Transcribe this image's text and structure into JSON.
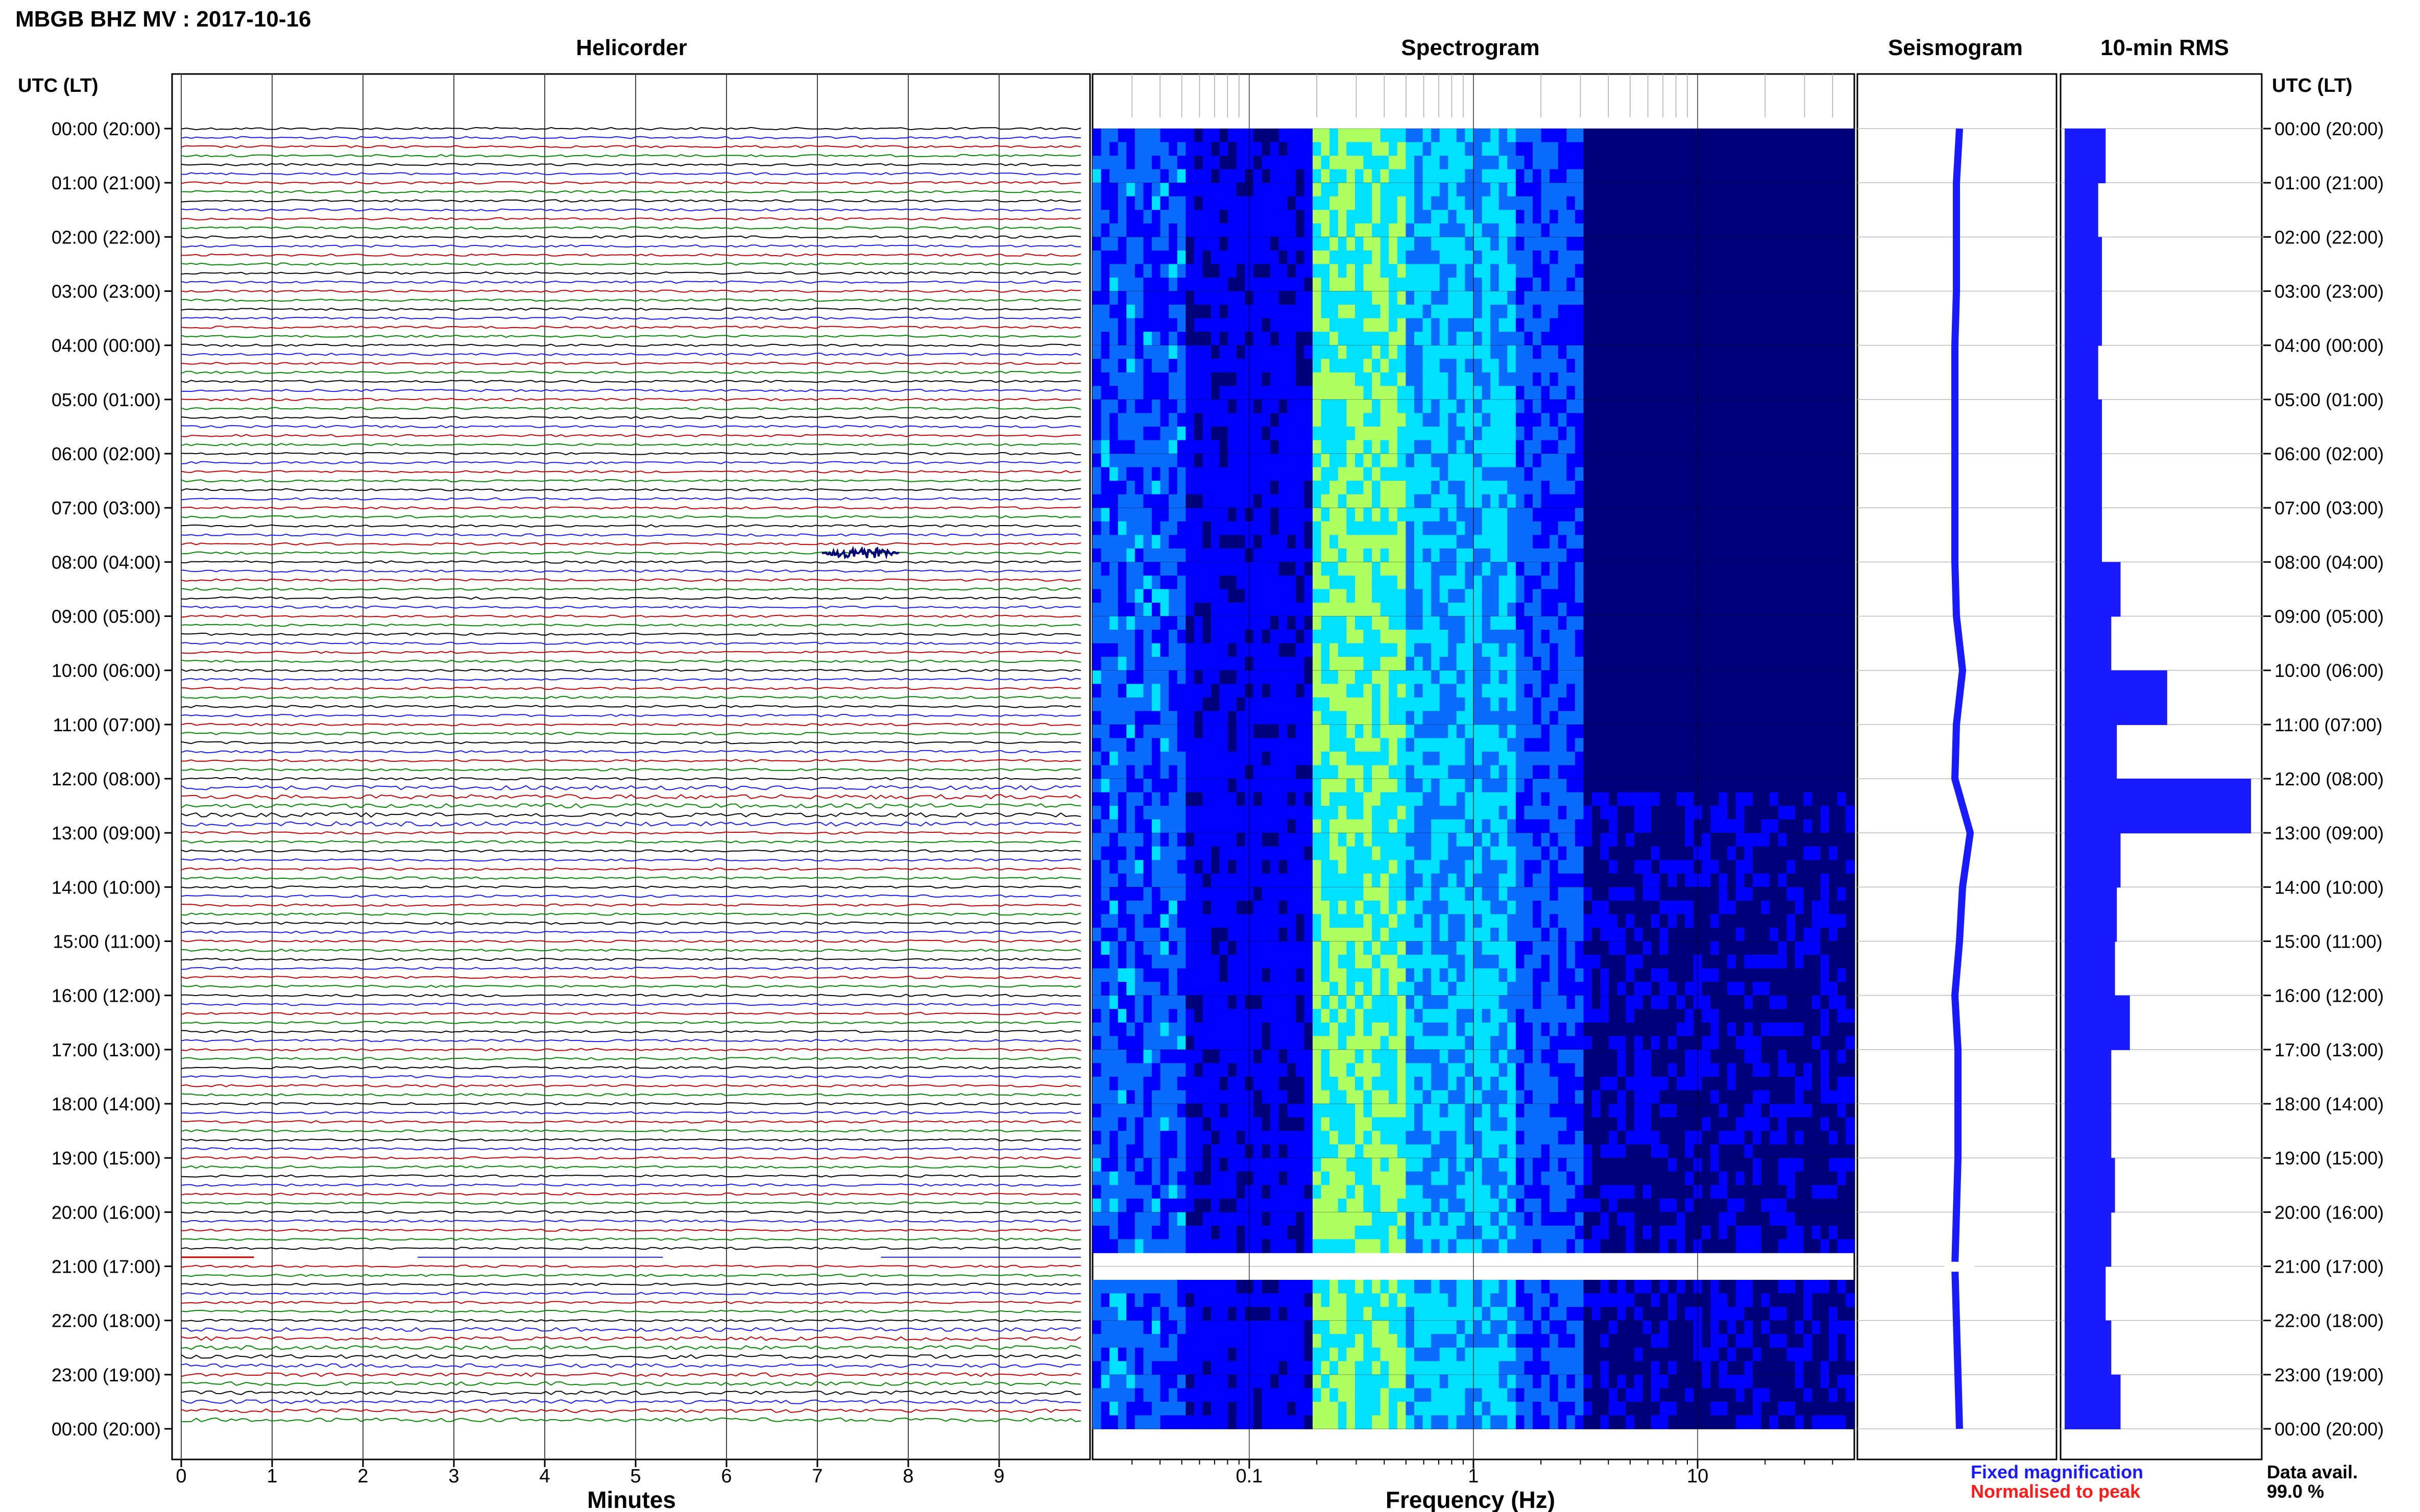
{
  "page_title": "MBGB BHZ MV : 2017-10-16",
  "panels": {
    "helicorder": "Helicorder",
    "spectrogram": "Spectrogram",
    "seismogram": "Seismogram",
    "rms": "10-min RMS"
  },
  "time_axis_label": "UTC (LT)",
  "hour_labels": [
    "00:00 (20:00)",
    "01:00 (21:00)",
    "02:00 (22:00)",
    "03:00 (23:00)",
    "04:00 (00:00)",
    "05:00 (01:00)",
    "06:00 (02:00)",
    "07:00 (03:00)",
    "08:00 (04:00)",
    "09:00 (05:00)",
    "10:00 (06:00)",
    "11:00 (07:00)",
    "12:00 (08:00)",
    "13:00 (09:00)",
    "14:00 (10:00)",
    "15:00 (11:00)",
    "16:00 (12:00)",
    "17:00 (13:00)",
    "18:00 (14:00)",
    "19:00 (15:00)",
    "20:00 (16:00)",
    "21:00 (17:00)",
    "22:00 (18:00)",
    "23:00 (19:00)",
    "00:00 (20:00)"
  ],
  "legend": {
    "fixed": "Fixed magnification",
    "normalised": "Normalised to peak",
    "fixed_color": "#1a1aff",
    "normalised_color": "#ff1a1a",
    "avail_label": "Data avail.",
    "avail_value": "99.0 %"
  },
  "chart_data": [
    {
      "type": "line",
      "title": "Helicorder",
      "xlabel": "Minutes",
      "x_ticks": [
        0,
        1,
        2,
        3,
        4,
        5,
        6,
        7,
        8,
        9
      ],
      "xlim": [
        0,
        10
      ],
      "trace_colors": [
        "#000000",
        "#1a1aff",
        "#cc0000",
        "#008800"
      ],
      "trace_rows_per_hour": 6,
      "events": [
        {
          "hour_utc": "07:50",
          "minute": 7.4
        }
      ],
      "gap": {
        "start_utc": "20:50",
        "end_utc": "21:00"
      }
    },
    {
      "type": "heatmap",
      "title": "Spectrogram",
      "xlabel": "Frequency (Hz)",
      "x_scale": "log",
      "xlim": [
        0.02,
        50
      ],
      "x_ticks": [
        0.1,
        1,
        10
      ],
      "colormap": [
        "#00007a",
        "#0000ff",
        "#0a6cff",
        "#00e0ff",
        "#b0ff60",
        "#ffff40"
      ],
      "peak_band_hz": [
        0.2,
        0.4
      ]
    },
    {
      "type": "line",
      "title": "Seismogram",
      "hours": [
        0,
        1,
        2,
        3,
        4,
        5,
        6,
        7,
        8,
        9,
        10,
        11,
        12,
        13,
        14,
        15,
        16,
        17,
        18,
        19,
        20,
        21,
        22,
        23,
        24
      ],
      "offset": [
        0,
        -0.1,
        -0.1,
        -0.1,
        -0.15,
        -0.15,
        -0.15,
        -0.15,
        -0.15,
        -0.1,
        0.1,
        -0.1,
        -0.15,
        0.35,
        0.1,
        0,
        -0.15,
        -0.05,
        -0.05,
        -0.05,
        -0.1,
        -0.15,
        -0.1,
        -0.05,
        0
      ]
    },
    {
      "type": "bar",
      "title": "10-min RMS",
      "hours": [
        0,
        1,
        2,
        3,
        4,
        5,
        6,
        7,
        8,
        9,
        10,
        11,
        12,
        13,
        14,
        15,
        16,
        17,
        18,
        19,
        20,
        21,
        22,
        23
      ],
      "values": [
        0.22,
        0.18,
        0.2,
        0.2,
        0.18,
        0.2,
        0.2,
        0.2,
        0.3,
        0.25,
        0.55,
        0.28,
        1.0,
        0.3,
        0.28,
        0.27,
        0.35,
        0.25,
        0.25,
        0.27,
        0.25,
        0.22,
        0.25,
        0.3
      ],
      "bar_color": "#1a1aff"
    }
  ]
}
